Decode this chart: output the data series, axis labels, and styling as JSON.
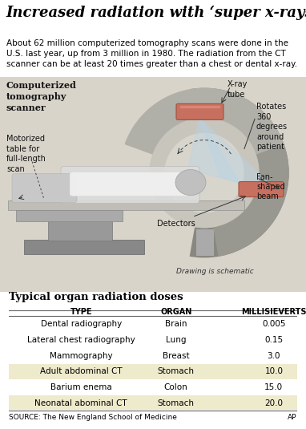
{
  "title": "Increased radiation with ‘super x-rays’",
  "subtitle": "About 62 million computerized tomography scans were done in the\nU.S. last year, up from 3 million in 1980. The radiation from the CT\nscanner can be at least 20 times greater than a chest or dental x-ray.",
  "diagram_label": "Computerized\ntomography\nscanner",
  "table_title": "Typical organ radiation doses",
  "table_headers": [
    "TYPE",
    "ORGAN",
    "MILLISIEVERTS"
  ],
  "table_rows": [
    [
      "Dental radiography",
      "Brain",
      "0.005"
    ],
    [
      "Lateral chest radiography",
      "Lung",
      "0.15"
    ],
    [
      "Mammography",
      "Breast",
      "3.0"
    ],
    [
      "Adult abdominal CT",
      "Stomach",
      "10.0"
    ],
    [
      "Barium enema",
      "Colon",
      "15.0"
    ],
    [
      "Neonatal abominal CT",
      "Stomach",
      "20.0"
    ]
  ],
  "row_highlights": [
    false,
    false,
    false,
    true,
    false,
    true
  ],
  "highlight_color": "#eeeacc",
  "source_text": "SOURCE: The New England School of Medicine",
  "ap_text": "AP",
  "bg_color": "#ffffff",
  "diagram_bg": "#d8d4c8",
  "scanner_gray": "#909090",
  "scanner_light": "#c8c8c8",
  "scanner_dark": "#606060",
  "tube_color": "#c87060",
  "table_line_color": "#666666",
  "title_fontsize": 13,
  "subtitle_fontsize": 7.5,
  "table_title_fontsize": 9.5,
  "table_header_fontsize": 7,
  "table_row_fontsize": 7.5
}
